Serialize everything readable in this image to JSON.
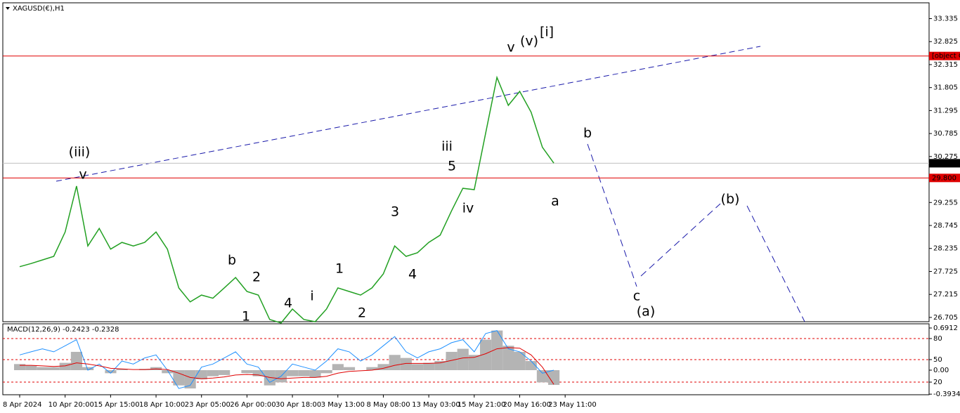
{
  "chart_data": {
    "type": "line",
    "title": "XAGUSD(€),H1",
    "categories": [
      "8 Apr 2024",
      null,
      null,
      null,
      "10 Apr 20:00",
      null,
      null,
      null,
      "15 Apr 15:00",
      null,
      null,
      null,
      "18 Apr 10:00",
      null,
      null,
      null,
      "23 Apr 05:00",
      null,
      null,
      null,
      "26 Apr 00:00",
      null,
      null,
      null,
      "30 Apr 18:00",
      null,
      null,
      null,
      "3 May 13:00",
      null,
      null,
      null,
      "8 May 08:00",
      null,
      null,
      null,
      "13 May 03:00",
      null,
      null,
      null,
      "15 May 21:00",
      null,
      null,
      null,
      "20 May 16:00",
      null,
      null,
      null,
      "23 May 11:00"
    ],
    "series": [
      {
        "color": "#22a022",
        "values": [
          27.83,
          27.9,
          27.98,
          28.06,
          28.6,
          29.62,
          28.29,
          28.68,
          28.22,
          28.37,
          28.29,
          28.37,
          28.6,
          28.22,
          27.36,
          27.05,
          27.2,
          27.13,
          27.36,
          27.59,
          27.28,
          27.2,
          26.66,
          26.58,
          26.89,
          26.66,
          26.61,
          26.89,
          27.36,
          27.28,
          27.2,
          27.36,
          27.67,
          28.29,
          28.06,
          28.14,
          28.37,
          28.53,
          29.07,
          29.57,
          29.54,
          30.79,
          32.03,
          31.41,
          31.72,
          31.26,
          30.48,
          30.13,
          null
        ]
      }
    ],
    "ylim": [
      26.61,
      33.686
    ],
    "yticks": [
      33.335,
      32.825,
      32.315,
      31.805,
      31.295,
      30.785,
      30.275,
      29.255,
      28.745,
      28.235,
      27.725,
      27.215,
      26.705
    ],
    "price_lines": [
      {
        "value": 32.506,
        "color": "#e00000"
      },
      {
        "value": 29.8,
        "label": "29.800",
        "color": "#e00000"
      },
      {
        "value": 30.126,
        "color": "#000000"
      }
    ],
    "annotations": [
      {
        "text": "(iii)",
        "color": "#1a1aff"
      },
      {
        "text": "v",
        "color": "#ff00ff"
      },
      {
        "text": "b",
        "color": "#ff00ff"
      },
      {
        "text": "2",
        "color": "#000000"
      },
      {
        "text": "1",
        "color": "#000000"
      },
      {
        "text": "4",
        "color": "#000000"
      },
      {
        "text": "i",
        "color": "#ff00ff"
      },
      {
        "text": "1",
        "color": "#000000"
      },
      {
        "text": "2",
        "color": "#000000"
      },
      {
        "text": "3",
        "color": "#000000"
      },
      {
        "text": "4",
        "color": "#000000"
      },
      {
        "text": "iii",
        "color": "#ff00ff"
      },
      {
        "text": "5",
        "color": "#000000"
      },
      {
        "text": "iv",
        "color": "#ff00ff"
      },
      {
        "text": "v",
        "color": "#ff00ff"
      },
      {
        "text": "(v)",
        "color": "#1a1aff"
      },
      {
        "text": "[i]",
        "color": "#149614"
      },
      {
        "text": "b",
        "color": "#ff00ff"
      },
      {
        "text": "a",
        "color": "#ff00ff"
      },
      {
        "text": "(b)",
        "color": "#1a1aff"
      },
      {
        "text": "c",
        "color": "#ff00ff"
      },
      {
        "text": "(a)",
        "color": "#1a1aff"
      }
    ],
    "indicator": {
      "label": "MACD(12,26,9) -0.2423 -0.2328",
      "ylim": [
        -0.403,
        0.76
      ],
      "yticks": [
        0.6912,
        {
          "value": 0.518,
          "label": "80"
        },
        {
          "value": 0.173,
          "label": "50"
        },
        {
          "value": 0,
          "label": "0.00"
        },
        {
          "value": -0.196,
          "label": "20"
        },
        -0.3934
      ],
      "levels": [
        0.518,
        0.173,
        -0.196
      ],
      "histogram": {
        "color": "#b4b4b4",
        "values": [
          0.1,
          0.08,
          0.05,
          0.05,
          0.12,
          0.3,
          0.05,
          0.0,
          -0.05,
          0.02,
          0.0,
          0.02,
          0.05,
          -0.05,
          -0.25,
          -0.3,
          -0.15,
          -0.1,
          -0.08,
          0.0,
          -0.05,
          -0.1,
          -0.25,
          -0.2,
          -0.1,
          -0.1,
          -0.12,
          -0.05,
          0.1,
          0.05,
          0.0,
          0.05,
          0.1,
          0.25,
          0.2,
          0.1,
          0.12,
          0.15,
          0.3,
          0.35,
          0.25,
          0.5,
          0.65,
          0.4,
          0.3,
          0.15,
          -0.2,
          -0.2423,
          null
        ]
      },
      "signal": {
        "color": "#e00000",
        "values": [
          0.08,
          0.08,
          0.07,
          0.06,
          0.07,
          0.12,
          0.1,
          0.07,
          0.03,
          0.02,
          0.01,
          0.01,
          0.02,
          0.01,
          -0.05,
          -0.12,
          -0.14,
          -0.13,
          -0.11,
          -0.08,
          -0.07,
          -0.08,
          -0.12,
          -0.14,
          -0.13,
          -0.12,
          -0.12,
          -0.1,
          -0.05,
          -0.02,
          -0.01,
          0.0,
          0.03,
          0.08,
          0.11,
          0.11,
          0.11,
          0.12,
          0.16,
          0.2,
          0.21,
          0.27,
          0.35,
          0.37,
          0.36,
          0.25,
          0.05,
          -0.2328,
          null
        ]
      },
      "oscillator": {
        "color": "#1e90ff",
        "values": [
          0.25,
          0.3,
          0.35,
          0.3,
          0.4,
          0.5,
          0.0,
          0.1,
          -0.05,
          0.15,
          0.1,
          0.2,
          0.25,
          0.0,
          -0.3,
          -0.25,
          0.05,
          0.1,
          0.2,
          0.3,
          0.1,
          0.05,
          -0.2,
          -0.1,
          0.1,
          0.05,
          0.0,
          0.15,
          0.35,
          0.3,
          0.15,
          0.25,
          0.4,
          0.55,
          0.3,
          0.2,
          0.3,
          0.35,
          0.45,
          0.5,
          0.3,
          0.6,
          0.65,
          0.35,
          0.3,
          0.15,
          -0.05,
          0.0,
          null
        ]
      }
    }
  }
}
